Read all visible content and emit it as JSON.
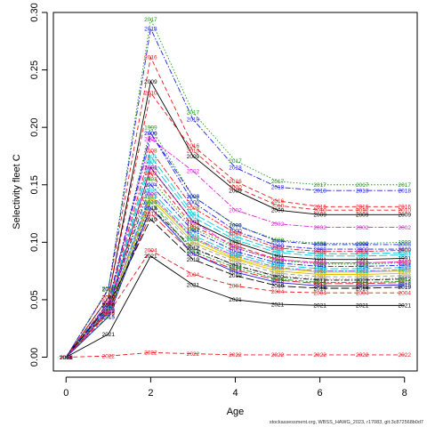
{
  "caption": "stockassessment.org, WBSS_HAWG_2023, r17083, git:3c872568b0d7",
  "chart_data": {
    "type": "line",
    "xlabel": "Age",
    "ylabel": "Selectivity fleet C",
    "xlim": [
      -0.3,
      8.3
    ],
    "ylim": [
      -0.012,
      0.3
    ],
    "xticks": [
      0,
      2,
      4,
      6,
      8
    ],
    "yticks": [
      0.0,
      0.05,
      0.1,
      0.15,
      0.2,
      0.25,
      0.3
    ],
    "ytick_labels": [
      "0.00",
      "0.05",
      "0.10",
      "0.15",
      "0.20",
      "0.25",
      "0.30"
    ],
    "x": [
      0,
      1,
      2,
      3,
      4,
      5,
      6,
      7,
      8
    ],
    "grid": false,
    "legend": "none",
    "point_labels": "year at each age",
    "series": [
      {
        "name": "1991",
        "color": "#000000",
        "values": [
          0,
          0.042,
          0.165,
          0.118,
          0.1,
          0.088,
          0.085,
          0.085,
          0.086
        ]
      },
      {
        "name": "1992",
        "color": "#e41a1c",
        "values": [
          0,
          0.04,
          0.16,
          0.114,
          0.097,
          0.085,
          0.082,
          0.082,
          0.083
        ]
      },
      {
        "name": "1993",
        "color": "#1a9c1a",
        "values": [
          0,
          0.041,
          0.155,
          0.112,
          0.095,
          0.084,
          0.081,
          0.081,
          0.082
        ]
      },
      {
        "name": "1994",
        "color": "#1f1fe0",
        "values": [
          0,
          0.043,
          0.15,
          0.11,
          0.092,
          0.082,
          0.079,
          0.079,
          0.08
        ]
      },
      {
        "name": "1995",
        "color": "#00c8d8",
        "values": [
          0,
          0.039,
          0.145,
          0.106,
          0.09,
          0.08,
          0.077,
          0.077,
          0.078
        ]
      },
      {
        "name": "1996",
        "color": "#e020e0",
        "values": [
          0,
          0.041,
          0.142,
          0.104,
          0.088,
          0.078,
          0.075,
          0.075,
          0.076
        ]
      },
      {
        "name": "1997",
        "color": "#e0c000",
        "values": [
          0,
          0.04,
          0.138,
          0.1,
          0.085,
          0.075,
          0.072,
          0.072,
          0.073
        ]
      },
      {
        "name": "1998",
        "color": "#999999",
        "values": [
          0,
          0.042,
          0.135,
          0.098,
          0.083,
          0.073,
          0.07,
          0.07,
          0.071
        ]
      },
      {
        "name": "1999",
        "color": "#1a9c1a",
        "values": [
          0,
          0.045,
          0.2,
          0.14,
          0.115,
          0.102,
          0.099,
          0.099,
          0.1
        ]
      },
      {
        "name": "2000",
        "color": "#1f1fe0",
        "values": [
          0,
          0.046,
          0.195,
          0.135,
          0.11,
          0.097,
          0.094,
          0.094,
          0.094
        ]
      },
      {
        "name": "2001",
        "color": "#00c8d8",
        "values": [
          0,
          0.044,
          0.175,
          0.125,
          0.105,
          0.093,
          0.09,
          0.09,
          0.091
        ]
      },
      {
        "name": "2002",
        "color": "#e020e0",
        "values": [
          0,
          0.046,
          0.19,
          0.162,
          0.128,
          0.116,
          0.113,
          0.113,
          0.113
        ]
      },
      {
        "name": "2003",
        "color": "#e0c000",
        "values": [
          0,
          0.04,
          0.14,
          0.103,
          0.086,
          0.077,
          0.074,
          0.074,
          0.075
        ]
      },
      {
        "name": "2004",
        "color": "#e41a1c",
        "values": [
          0,
          0.038,
          0.093,
          0.072,
          0.062,
          0.057,
          0.056,
          0.056,
          0.056
        ]
      },
      {
        "name": "2005",
        "color": "#999999",
        "values": [
          0,
          0.04,
          0.128,
          0.094,
          0.08,
          0.071,
          0.068,
          0.068,
          0.069
        ]
      },
      {
        "name": "2006",
        "color": "#1f1fe0",
        "values": [
          0,
          0.048,
          0.195,
          0.14,
          0.115,
          0.101,
          0.098,
          0.098,
          0.098
        ]
      },
      {
        "name": "2007",
        "color": "#00c8d8",
        "values": [
          0,
          0.044,
          0.17,
          0.122,
          0.102,
          0.091,
          0.088,
          0.088,
          0.089
        ]
      },
      {
        "name": "2008",
        "color": "#e41a1c",
        "values": [
          0,
          0.047,
          0.18,
          0.13,
          0.108,
          0.095,
          0.092,
          0.092,
          0.093
        ]
      },
      {
        "name": "2009",
        "color": "#000000",
        "values": [
          0,
          0.052,
          0.24,
          0.175,
          0.145,
          0.128,
          0.124,
          0.124,
          0.124
        ]
      },
      {
        "name": "2010",
        "color": "#e41a1c",
        "values": [
          0,
          0.052,
          0.23,
          0.18,
          0.148,
          0.132,
          0.128,
          0.128,
          0.128
        ]
      },
      {
        "name": "2011",
        "color": "#00c8d8",
        "values": [
          0,
          0.041,
          0.14,
          0.103,
          0.088,
          0.078,
          0.075,
          0.075,
          0.076
        ]
      },
      {
        "name": "2012",
        "color": "#000000",
        "values": [
          0,
          0.04,
          0.13,
          0.095,
          0.08,
          0.07,
          0.067,
          0.067,
          0.068
        ]
      },
      {
        "name": "2013",
        "color": "#e41a1c",
        "values": [
          0,
          0.039,
          0.125,
          0.09,
          0.076,
          0.067,
          0.064,
          0.064,
          0.065
        ]
      },
      {
        "name": "2014",
        "color": "#1a9c1a",
        "values": [
          0,
          0.036,
          0.135,
          0.092,
          0.078,
          0.068,
          0.065,
          0.065,
          0.066
        ]
      },
      {
        "name": "2015",
        "color": "#1f1fe0",
        "values": [
          0,
          0.035,
          0.13,
          0.09,
          0.074,
          0.065,
          0.062,
          0.062,
          0.063
        ]
      },
      {
        "name": "2016",
        "color": "#e41a1c",
        "values": [
          0,
          0.059,
          0.261,
          0.184,
          0.153,
          0.136,
          0.131,
          0.131,
          0.131
        ]
      },
      {
        "name": "2017",
        "color": "#1a9c1a",
        "values": [
          0,
          0.06,
          0.294,
          0.213,
          0.171,
          0.153,
          0.15,
          0.15,
          0.15
        ]
      },
      {
        "name": "2018",
        "color": "#1f1fe0",
        "values": [
          0,
          0.059,
          0.286,
          0.207,
          0.165,
          0.148,
          0.145,
          0.145,
          0.145
        ]
      },
      {
        "name": "2019",
        "color": "#000000",
        "values": [
          0,
          0.045,
          0.12,
          0.085,
          0.071,
          0.062,
          0.06,
          0.06,
          0.061
        ]
      },
      {
        "name": "2020",
        "color": "#e020e0",
        "values": [
          0,
          0.041,
          0.165,
          0.118,
          0.095,
          0.085,
          0.082,
          0.082,
          0.083
        ]
      },
      {
        "name": "2021",
        "color": "#000000",
        "values": [
          0,
          0.02,
          0.088,
          0.063,
          0.05,
          0.046,
          0.045,
          0.045,
          0.045
        ]
      },
      {
        "name": "2022",
        "color": "#e41a1c",
        "values": [
          0,
          0.001,
          0.004,
          0.003,
          0.002,
          0.002,
          0.002,
          0.002,
          0.002
        ]
      }
    ]
  }
}
